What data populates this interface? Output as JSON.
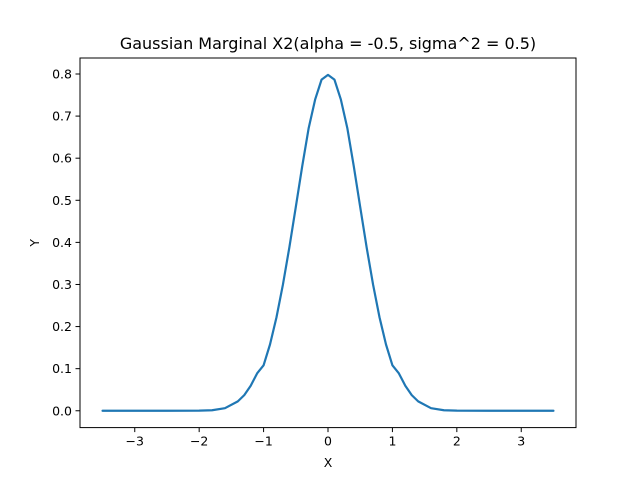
{
  "chart_data": {
    "type": "line",
    "title": "Gaussian Marginal X2(alpha = -0.5, sigma^2 = 0.5)",
    "xlabel": "X",
    "ylabel": "Y",
    "xlim": [
      -3.85,
      3.85
    ],
    "ylim": [
      -0.04,
      0.838
    ],
    "xticks": [
      -3,
      -2,
      -1,
      0,
      1,
      2,
      3
    ],
    "xtick_labels": [
      "−3",
      "−2",
      "−1",
      "0",
      "1",
      "2",
      "3"
    ],
    "yticks": [
      0.0,
      0.1,
      0.2,
      0.3,
      0.4,
      0.5,
      0.6,
      0.7,
      0.8
    ],
    "ytick_labels": [
      "0.0",
      "0.1",
      "0.2",
      "0.3",
      "0.4",
      "0.5",
      "0.6",
      "0.7",
      "0.8"
    ],
    "grid": false,
    "series": [
      {
        "color": "#1f77b4",
        "x": [
          -3.5,
          -3.0,
          -2.5,
          -2.0,
          -1.8,
          -1.6,
          -1.4,
          -1.3,
          -1.2,
          -1.1,
          -1.0,
          -0.9,
          -0.8,
          -0.7,
          -0.6,
          -0.5,
          -0.4,
          -0.3,
          -0.2,
          -0.1,
          0.0,
          0.1,
          0.2,
          0.3,
          0.4,
          0.5,
          0.6,
          0.7,
          0.8,
          0.9,
          1.0,
          1.1,
          1.2,
          1.3,
          1.4,
          1.6,
          1.8,
          2.0,
          2.5,
          3.0,
          3.5
        ],
        "y": [
          0.0,
          0.0,
          0.0,
          0.0003,
          0.0012,
          0.0061,
          0.0223,
          0.0371,
          0.0595,
          0.0889,
          0.108,
          0.1577,
          0.2218,
          0.2995,
          0.388,
          0.4839,
          0.5809,
          0.6715,
          0.7392,
          0.7866,
          0.7979,
          0.7866,
          0.7392,
          0.6715,
          0.5809,
          0.4839,
          0.388,
          0.2995,
          0.2218,
          0.1577,
          0.108,
          0.0889,
          0.0595,
          0.0371,
          0.0223,
          0.0061,
          0.0012,
          0.0003,
          0.0,
          0.0,
          0.0
        ]
      }
    ]
  }
}
